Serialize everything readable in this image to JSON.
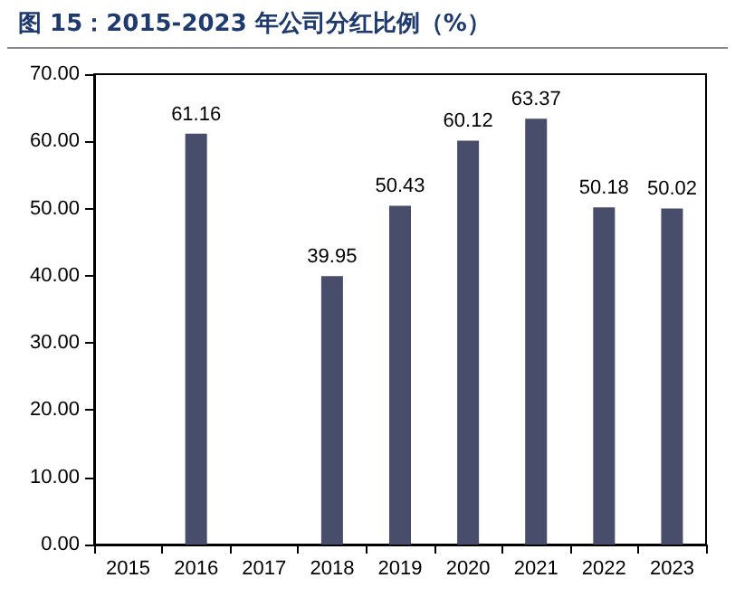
{
  "chart_data": {
    "type": "bar",
    "title": "图 15：2015-2023 年公司分红比例（%）",
    "categories": [
      "2015",
      "2016",
      "2017",
      "2018",
      "2019",
      "2020",
      "2021",
      "2022",
      "2023"
    ],
    "values": [
      null,
      61.16,
      null,
      39.95,
      50.43,
      60.12,
      63.37,
      50.18,
      50.02
    ],
    "color": "#474d6b",
    "ylim": [
      0,
      70
    ],
    "yticks": [
      {
        "value": 0,
        "label": "0.00"
      },
      {
        "value": 10,
        "label": "10.00"
      },
      {
        "value": 20,
        "label": "20.00"
      },
      {
        "value": 30,
        "label": "30.00"
      },
      {
        "value": 40,
        "label": "40.00"
      },
      {
        "value": 50,
        "label": "50.00"
      },
      {
        "value": 60,
        "label": "60.00"
      },
      {
        "value": 70,
        "label": "70.00"
      }
    ],
    "data_labels": true,
    "grid": false
  }
}
